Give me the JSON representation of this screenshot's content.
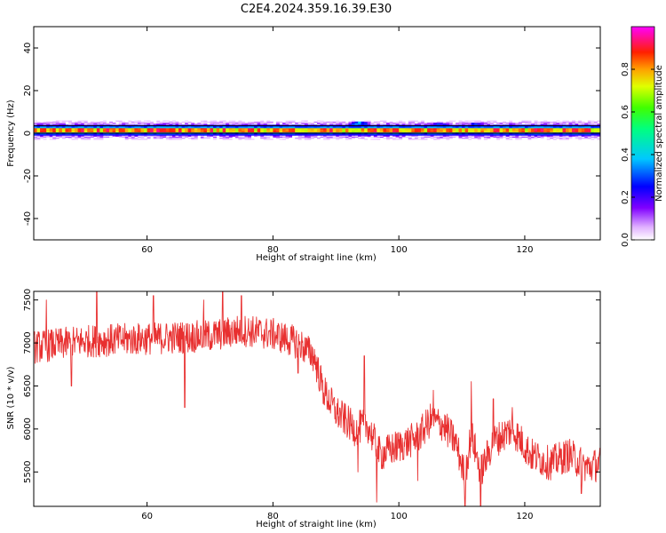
{
  "title": "C2E4.2024.359.16.39.E30",
  "chart_data": [
    {
      "type": "heatmap",
      "xlabel": "Height of straight line (km)",
      "ylabel": "Frequency (Hz)",
      "xlim": [
        42,
        132
      ],
      "ylim": [
        -50,
        50
      ],
      "x_ticks": [
        60,
        80,
        100,
        120
      ],
      "y_ticks": [
        -40,
        -20,
        0,
        20,
        40
      ],
      "colorbar": {
        "label": "Normalized spectral amplitude",
        "range": [
          0,
          1
        ],
        "ticks": [
          "0.0",
          "0.2",
          "0.4",
          "0.6",
          "0.8"
        ],
        "tick_values": [
          0.0,
          0.2,
          0.4,
          0.6,
          0.8
        ],
        "stops": [
          {
            "v": 0.0,
            "color": "#ffffff"
          },
          {
            "v": 0.06,
            "color": "#e0b0ff"
          },
          {
            "v": 0.15,
            "color": "#8000ff"
          },
          {
            "v": 0.25,
            "color": "#0000ff"
          },
          {
            "v": 0.38,
            "color": "#00c8ff"
          },
          {
            "v": 0.52,
            "color": "#00ff80"
          },
          {
            "v": 0.62,
            "color": "#40ff00"
          },
          {
            "v": 0.72,
            "color": "#e0ff00"
          },
          {
            "v": 0.8,
            "color": "#ffa000"
          },
          {
            "v": 0.88,
            "color": "#ff2000"
          },
          {
            "v": 1.0,
            "color": "#ff00ff"
          }
        ]
      },
      "band": {
        "center_freq_hz": 1.5,
        "halfwidth_hz": 2.5,
        "outline_hz": [
          0,
          3.5
        ],
        "core_value": 0.92,
        "edge_value": 0.2,
        "bulges": [
          {
            "x": 93.5,
            "freq_hz": 4,
            "value": 0.3
          },
          {
            "x": 106,
            "freq_hz": 3.5,
            "value": 0.2
          },
          {
            "x": 112,
            "freq_hz": 3.5,
            "value": 0.2
          }
        ]
      }
    },
    {
      "type": "line",
      "xlabel": "Height of straight line (km)",
      "ylabel": "SNR (10 * v/v)",
      "xlim": [
        42,
        132
      ],
      "ylim": [
        5100,
        7600
      ],
      "x_ticks": [
        60,
        80,
        100,
        120
      ],
      "y_ticks": [
        5500,
        6000,
        6500,
        7000,
        7500
      ],
      "color": "#e83030",
      "trend": [
        [
          42,
          6950
        ],
        [
          50,
          7020
        ],
        [
          60,
          7050
        ],
        [
          70,
          7080
        ],
        [
          75,
          7150
        ],
        [
          80,
          7100
        ],
        [
          84,
          7000
        ],
        [
          86.5,
          6850
        ],
        [
          88,
          6450
        ],
        [
          90,
          6200
        ],
        [
          93,
          6000
        ],
        [
          95,
          6050
        ],
        [
          97,
          5700
        ],
        [
          100,
          5800
        ],
        [
          103,
          5900
        ],
        [
          105,
          6100
        ],
        [
          107,
          6050
        ],
        [
          109,
          5850
        ],
        [
          110.5,
          5450
        ],
        [
          111.5,
          5950
        ],
        [
          113,
          5500
        ],
        [
          115,
          5850
        ],
        [
          118,
          6000
        ],
        [
          121,
          5700
        ],
        [
          124,
          5600
        ],
        [
          127,
          5700
        ],
        [
          130,
          5550
        ],
        [
          132,
          5600
        ]
      ],
      "spikes": [
        [
          44,
          7500
        ],
        [
          48,
          6500
        ],
        [
          52,
          7600
        ],
        [
          61,
          7550
        ],
        [
          66,
          6250
        ],
        [
          69,
          7500
        ],
        [
          72,
          7600
        ],
        [
          75,
          7550
        ],
        [
          84,
          6650
        ],
        [
          93.5,
          5500
        ],
        [
          94.5,
          6850
        ],
        [
          96.5,
          5150
        ],
        [
          103,
          5400
        ],
        [
          105.5,
          6450
        ],
        [
          110.5,
          5100
        ],
        [
          111.5,
          6550
        ],
        [
          113,
          5100
        ],
        [
          115,
          6350
        ],
        [
          118,
          6250
        ],
        [
          129,
          5250
        ]
      ]
    }
  ]
}
